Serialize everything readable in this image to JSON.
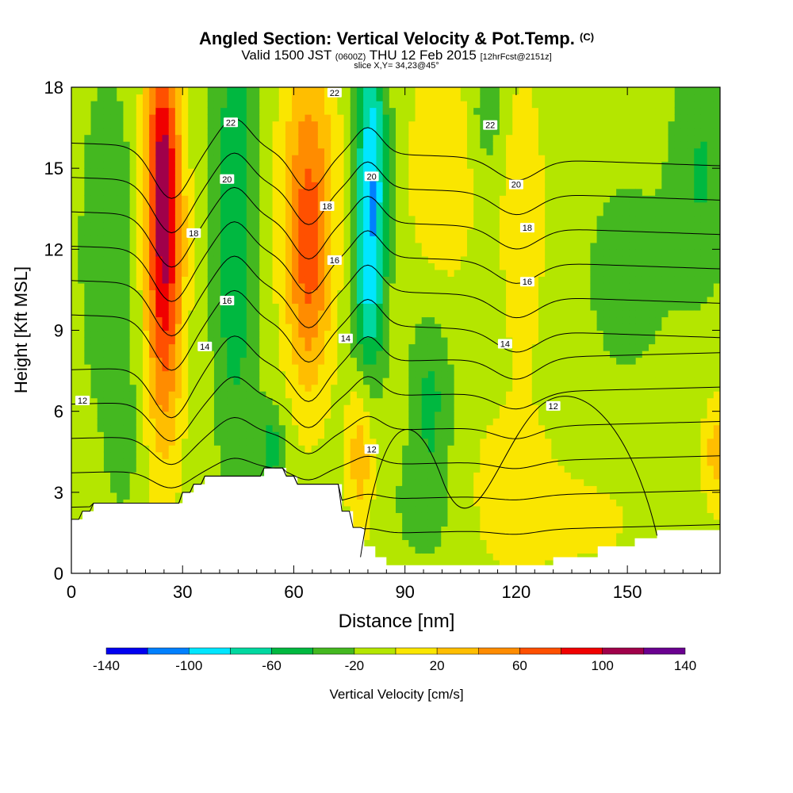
{
  "header": {
    "title": "Angled Section: Vertical Velocity & Pot.Temp.",
    "title_units": "(C)",
    "valid_prefix": "Valid 1500 JST",
    "valid_utc": "(0600Z)",
    "valid_date": "THU 12 Feb 2015",
    "forecast": "[12hrFcst@2151z]",
    "slice": "slice X,Y= 34,23@45°"
  },
  "chart_data": {
    "type": "heatmap",
    "title": "Angled Section: Vertical Velocity & Pot.Temp.",
    "xlabel": "Distance [nm]",
    "ylabel": "Height [Kft MSL]",
    "xlim": [
      0,
      175
    ],
    "ylim": [
      0,
      18
    ],
    "x_ticks": [
      0,
      30,
      60,
      90,
      120,
      150
    ],
    "y_ticks": [
      0,
      3,
      6,
      9,
      12,
      15,
      18
    ],
    "colorbar": {
      "label": "Vertical Velocity [cm/s]",
      "boundaries": [
        -140,
        -120,
        -100,
        -80,
        -60,
        -40,
        -20,
        0,
        20,
        40,
        60,
        80,
        100,
        120,
        140
      ],
      "tick_labels": [
        "-140",
        "-100",
        "-60",
        "-20",
        "20",
        "60",
        "100",
        "140"
      ],
      "tick_values": [
        -140,
        -100,
        -60,
        -20,
        20,
        60,
        100,
        140
      ],
      "colors": [
        "#0000f0",
        "#0080ff",
        "#00e6ff",
        "#00d8a0",
        "#00b840",
        "#44b820",
        "#b4e600",
        "#fae600",
        "#ffbe00",
        "#ff8c00",
        "#ff5000",
        "#f00000",
        "#a0004a",
        "#6a0090"
      ]
    },
    "velocity_field": {
      "note_units": "cm/s",
      "background": -10,
      "features": [
        {
          "x": 25,
          "y": 12,
          "sx": 3.5,
          "sy": 4.8,
          "v": 110
        },
        {
          "x": 24,
          "y": 16,
          "sx": 3.0,
          "sy": 2.5,
          "v": 40
        },
        {
          "x": 10,
          "y": 12,
          "sx": 6.0,
          "sy": 5.0,
          "v": -22
        },
        {
          "x": 14,
          "y": 5,
          "sx": 3.0,
          "sy": 2.0,
          "v": -15
        },
        {
          "x": 44,
          "y": 13,
          "sx": 4.0,
          "sy": 6.0,
          "v": -50
        },
        {
          "x": 64,
          "y": 14,
          "sx": 5.0,
          "sy": 4.0,
          "v": 65
        },
        {
          "x": 64,
          "y": 10,
          "sx": 4.0,
          "sy": 3.0,
          "v": 30
        },
        {
          "x": 81,
          "y": 15,
          "sx": 3.0,
          "sy": 3.5,
          "v": -85
        },
        {
          "x": 80,
          "y": 10,
          "sx": 3.0,
          "sy": 2.5,
          "v": -45
        },
        {
          "x": 54,
          "y": 4.6,
          "sx": 2.5,
          "sy": 1.2,
          "v": -40
        },
        {
          "x": 78,
          "y": 4.5,
          "sx": 2.5,
          "sy": 2.0,
          "v": 45
        },
        {
          "x": 97,
          "y": 6.5,
          "sx": 4.0,
          "sy": 2.3,
          "v": -35
        },
        {
          "x": 100,
          "y": 15,
          "sx": 6.0,
          "sy": 3.0,
          "v": 30
        },
        {
          "x": 95,
          "y": 2.5,
          "sx": 6.0,
          "sy": 1.5,
          "v": -18
        },
        {
          "x": 112,
          "y": 17,
          "sx": 3.0,
          "sy": 1.5,
          "v": -25
        },
        {
          "x": 122,
          "y": 13,
          "sx": 4.0,
          "sy": 3.5,
          "v": 30
        },
        {
          "x": 120,
          "y": 3,
          "sx": 10.0,
          "sy": 2.5,
          "v": 20
        },
        {
          "x": 150,
          "y": 11,
          "sx": 12.0,
          "sy": 4.0,
          "v": -14
        },
        {
          "x": 170,
          "y": 15,
          "sx": 5.0,
          "sy": 3.0,
          "v": -30
        },
        {
          "x": 174,
          "y": 4.5,
          "sx": 2.5,
          "sy": 1.5,
          "v": 40
        },
        {
          "x": 140,
          "y": 2,
          "sx": 8.0,
          "sy": 1.0,
          "v": 20
        }
      ]
    },
    "terrain_height_kft": [
      [
        0,
        2.0
      ],
      [
        3,
        2.0
      ],
      [
        3,
        2.3
      ],
      [
        6,
        2.3
      ],
      [
        6,
        2.6
      ],
      [
        10,
        2.6
      ],
      [
        10,
        2.6
      ],
      [
        30,
        2.6
      ],
      [
        30,
        3.0
      ],
      [
        33,
        3.0
      ],
      [
        33,
        3.3
      ],
      [
        36,
        3.3
      ],
      [
        36,
        3.6
      ],
      [
        52,
        3.6
      ],
      [
        52,
        3.9
      ],
      [
        58,
        3.9
      ],
      [
        58,
        3.6
      ],
      [
        61,
        3.6
      ],
      [
        61,
        3.3
      ],
      [
        73,
        3.3
      ],
      [
        73,
        2.3
      ],
      [
        76,
        2.3
      ],
      [
        76,
        1.7
      ],
      [
        79,
        1.7
      ],
      [
        79,
        1.0
      ],
      [
        82,
        1.0
      ],
      [
        82,
        0.6
      ],
      [
        85,
        0.6
      ],
      [
        85,
        0.3
      ],
      [
        130,
        0.3
      ],
      [
        130,
        0.6
      ],
      [
        142,
        0.6
      ],
      [
        142,
        1.0
      ],
      [
        152,
        1.0
      ],
      [
        152,
        1.3
      ],
      [
        158,
        1.3
      ],
      [
        158,
        1.6
      ],
      [
        175,
        1.6
      ]
    ],
    "potential_temperature_contours": {
      "levels": [
        12,
        13,
        14,
        15,
        16,
        17,
        18,
        19,
        20,
        21,
        22,
        23
      ],
      "labels_shown": [
        "12",
        "12",
        "12",
        "14",
        "14",
        "14",
        "16",
        "16",
        "16",
        "18",
        "18",
        "18",
        "20",
        "20",
        "20",
        "22",
        "22",
        "22"
      ],
      "label_positions": [
        {
          "text": "12",
          "x": 3,
          "y": 6.4
        },
        {
          "text": "12",
          "x": 81,
          "y": 4.6
        },
        {
          "text": "12",
          "x": 130,
          "y": 6.2
        },
        {
          "text": "14",
          "x": 36,
          "y": 8.4
        },
        {
          "text": "14",
          "x": 74,
          "y": 8.7
        },
        {
          "text": "14",
          "x": 117,
          "y": 8.5
        },
        {
          "text": "16",
          "x": 42,
          "y": 10.1
        },
        {
          "text": "16",
          "x": 71,
          "y": 11.6
        },
        {
          "text": "16",
          "x": 123,
          "y": 10.8
        },
        {
          "text": "18",
          "x": 33,
          "y": 12.6
        },
        {
          "text": "18",
          "x": 69,
          "y": 13.6
        },
        {
          "text": "18",
          "x": 123,
          "y": 12.8
        },
        {
          "text": "20",
          "x": 42,
          "y": 14.6
        },
        {
          "text": "20",
          "x": 81,
          "y": 14.7
        },
        {
          "text": "20",
          "x": 120,
          "y": 14.4
        },
        {
          "text": "22",
          "x": 43,
          "y": 16.7
        },
        {
          "text": "22",
          "x": 71,
          "y": 17.8
        },
        {
          "text": "22",
          "x": 113,
          "y": 16.6
        }
      ]
    }
  },
  "axes": {
    "xlabel": "Distance [nm]",
    "ylabel": "Height [Kft MSL]"
  },
  "colorbar_label": "Vertical Velocity [cm/s]"
}
